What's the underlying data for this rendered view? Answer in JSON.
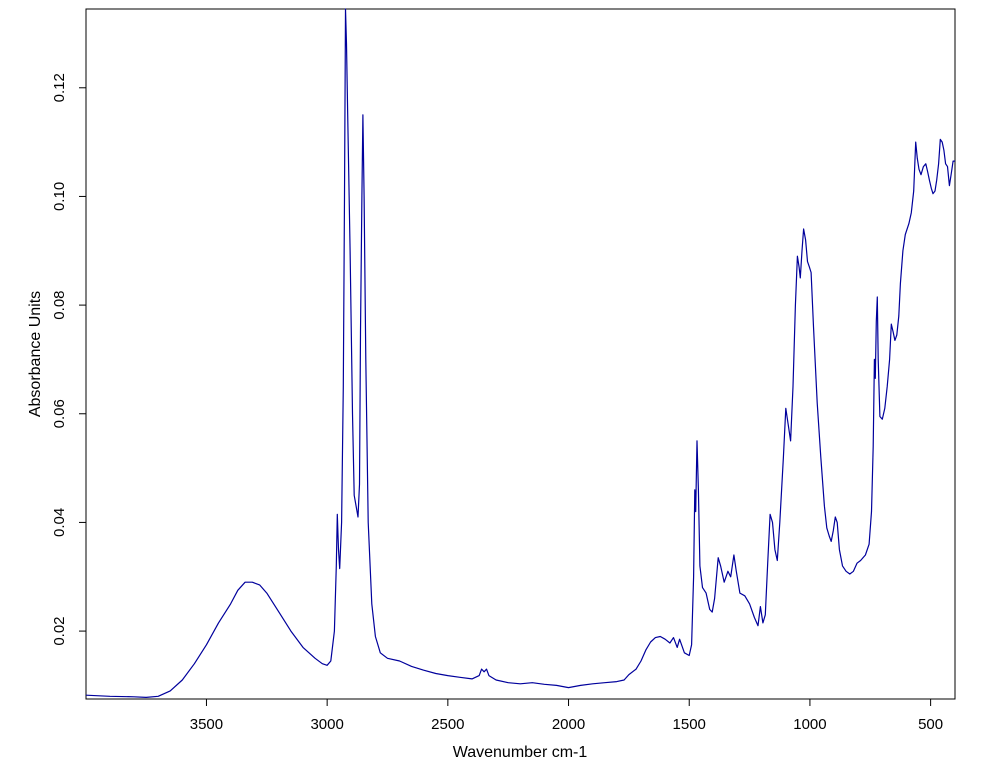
{
  "chart_data": {
    "type": "line",
    "title": "",
    "xlabel": "Wavenumber cm-1",
    "ylabel": "Absorbance Units",
    "x_reversed": true,
    "xlim": [
      3999,
      399
    ],
    "ylim": [
      0.0075,
      0.1345
    ],
    "xticks": [
      3500,
      3000,
      2500,
      2000,
      1500,
      1000,
      500
    ],
    "yticks": [
      0.02,
      0.04,
      0.06,
      0.08,
      0.1,
      0.12
    ],
    "ytick_labels": [
      "0.02",
      "0.04",
      "0.06",
      "0.08",
      "0.10",
      "0.12"
    ],
    "grid": false,
    "line_color": "#00009c",
    "series": [
      {
        "points": [
          [
            3999,
            0.0082
          ],
          [
            3900,
            0.008
          ],
          [
            3800,
            0.0079
          ],
          [
            3750,
            0.0078
          ],
          [
            3700,
            0.008
          ],
          [
            3650,
            0.009
          ],
          [
            3600,
            0.011
          ],
          [
            3550,
            0.014
          ],
          [
            3500,
            0.0175
          ],
          [
            3450,
            0.0215
          ],
          [
            3400,
            0.025
          ],
          [
            3370,
            0.0275
          ],
          [
            3340,
            0.029
          ],
          [
            3310,
            0.029
          ],
          [
            3280,
            0.0285
          ],
          [
            3250,
            0.027
          ],
          [
            3200,
            0.0235
          ],
          [
            3150,
            0.02
          ],
          [
            3100,
            0.017
          ],
          [
            3050,
            0.015
          ],
          [
            3020,
            0.014
          ],
          [
            3000,
            0.0137
          ],
          [
            2985,
            0.0145
          ],
          [
            2970,
            0.02
          ],
          [
            2962,
            0.032
          ],
          [
            2958,
            0.0415
          ],
          [
            2953,
            0.035
          ],
          [
            2948,
            0.0315
          ],
          [
            2940,
            0.04
          ],
          [
            2933,
            0.065
          ],
          [
            2928,
            0.1
          ],
          [
            2924,
            0.1345
          ],
          [
            2920,
            0.128
          ],
          [
            2915,
            0.115
          ],
          [
            2905,
            0.09
          ],
          [
            2895,
            0.06
          ],
          [
            2888,
            0.045
          ],
          [
            2880,
            0.043
          ],
          [
            2872,
            0.041
          ],
          [
            2866,
            0.047
          ],
          [
            2862,
            0.075
          ],
          [
            2856,
            0.1
          ],
          [
            2852,
            0.115
          ],
          [
            2847,
            0.1
          ],
          [
            2840,
            0.07
          ],
          [
            2830,
            0.04
          ],
          [
            2815,
            0.025
          ],
          [
            2800,
            0.019
          ],
          [
            2780,
            0.016
          ],
          [
            2750,
            0.015
          ],
          [
            2700,
            0.0145
          ],
          [
            2650,
            0.0135
          ],
          [
            2600,
            0.0128
          ],
          [
            2550,
            0.0122
          ],
          [
            2500,
            0.0118
          ],
          [
            2450,
            0.0115
          ],
          [
            2400,
            0.0112
          ],
          [
            2370,
            0.0118
          ],
          [
            2360,
            0.013
          ],
          [
            2350,
            0.0125
          ],
          [
            2340,
            0.013
          ],
          [
            2330,
            0.0118
          ],
          [
            2300,
            0.011
          ],
          [
            2250,
            0.0105
          ],
          [
            2200,
            0.0103
          ],
          [
            2150,
            0.0105
          ],
          [
            2100,
            0.0102
          ],
          [
            2050,
            0.01
          ],
          [
            2000,
            0.0096
          ],
          [
            1950,
            0.01
          ],
          [
            1900,
            0.0103
          ],
          [
            1850,
            0.0105
          ],
          [
            1800,
            0.0107
          ],
          [
            1770,
            0.011
          ],
          [
            1750,
            0.012
          ],
          [
            1720,
            0.013
          ],
          [
            1700,
            0.0145
          ],
          [
            1680,
            0.0165
          ],
          [
            1660,
            0.018
          ],
          [
            1640,
            0.0188
          ],
          [
            1620,
            0.019
          ],
          [
            1600,
            0.0185
          ],
          [
            1580,
            0.0178
          ],
          [
            1565,
            0.0188
          ],
          [
            1550,
            0.017
          ],
          [
            1540,
            0.0185
          ],
          [
            1520,
            0.016
          ],
          [
            1500,
            0.0155
          ],
          [
            1490,
            0.0175
          ],
          [
            1482,
            0.03
          ],
          [
            1477,
            0.046
          ],
          [
            1473,
            0.042
          ],
          [
            1468,
            0.055
          ],
          [
            1462,
            0.046
          ],
          [
            1456,
            0.032
          ],
          [
            1445,
            0.028
          ],
          [
            1430,
            0.027
          ],
          [
            1415,
            0.024
          ],
          [
            1405,
            0.0235
          ],
          [
            1395,
            0.026
          ],
          [
            1380,
            0.0335
          ],
          [
            1370,
            0.032
          ],
          [
            1355,
            0.029
          ],
          [
            1340,
            0.031
          ],
          [
            1328,
            0.03
          ],
          [
            1315,
            0.034
          ],
          [
            1305,
            0.031
          ],
          [
            1290,
            0.027
          ],
          [
            1270,
            0.0265
          ],
          [
            1250,
            0.025
          ],
          [
            1230,
            0.0225
          ],
          [
            1215,
            0.021
          ],
          [
            1205,
            0.0245
          ],
          [
            1195,
            0.0215
          ],
          [
            1185,
            0.023
          ],
          [
            1175,
            0.0325
          ],
          [
            1165,
            0.0415
          ],
          [
            1155,
            0.04
          ],
          [
            1145,
            0.035
          ],
          [
            1135,
            0.033
          ],
          [
            1125,
            0.04
          ],
          [
            1110,
            0.052
          ],
          [
            1100,
            0.061
          ],
          [
            1090,
            0.058
          ],
          [
            1080,
            0.055
          ],
          [
            1070,
            0.065
          ],
          [
            1060,
            0.08
          ],
          [
            1052,
            0.089
          ],
          [
            1045,
            0.087
          ],
          [
            1040,
            0.085
          ],
          [
            1033,
            0.09
          ],
          [
            1026,
            0.094
          ],
          [
            1018,
            0.092
          ],
          [
            1010,
            0.088
          ],
          [
            1002,
            0.087
          ],
          [
            995,
            0.086
          ],
          [
            985,
            0.076
          ],
          [
            970,
            0.062
          ],
          [
            955,
            0.052
          ],
          [
            940,
            0.043
          ],
          [
            930,
            0.039
          ],
          [
            920,
            0.0375
          ],
          [
            912,
            0.0365
          ],
          [
            903,
            0.0385
          ],
          [
            895,
            0.041
          ],
          [
            887,
            0.04
          ],
          [
            878,
            0.035
          ],
          [
            865,
            0.032
          ],
          [
            850,
            0.031
          ],
          [
            835,
            0.0305
          ],
          [
            820,
            0.031
          ],
          [
            805,
            0.0325
          ],
          [
            790,
            0.033
          ],
          [
            770,
            0.034
          ],
          [
            755,
            0.036
          ],
          [
            745,
            0.042
          ],
          [
            738,
            0.054
          ],
          [
            733,
            0.07
          ],
          [
            729,
            0.0665
          ],
          [
            725,
            0.077
          ],
          [
            721,
            0.0815
          ],
          [
            717,
            0.07
          ],
          [
            710,
            0.0595
          ],
          [
            700,
            0.059
          ],
          [
            690,
            0.061
          ],
          [
            680,
            0.065
          ],
          [
            670,
            0.07
          ],
          [
            663,
            0.0765
          ],
          [
            655,
            0.075
          ],
          [
            648,
            0.0735
          ],
          [
            640,
            0.0745
          ],
          [
            632,
            0.078
          ],
          [
            625,
            0.084
          ],
          [
            615,
            0.09
          ],
          [
            605,
            0.093
          ],
          [
            590,
            0.095
          ],
          [
            580,
            0.097
          ],
          [
            570,
            0.101
          ],
          [
            562,
            0.11
          ],
          [
            555,
            0.107
          ],
          [
            548,
            0.105
          ],
          [
            540,
            0.104
          ],
          [
            530,
            0.1055
          ],
          [
            520,
            0.106
          ],
          [
            512,
            0.1045
          ],
          [
            505,
            0.103
          ],
          [
            497,
            0.1015
          ],
          [
            490,
            0.1005
          ],
          [
            482,
            0.101
          ],
          [
            475,
            0.103
          ],
          [
            467,
            0.106
          ],
          [
            460,
            0.1105
          ],
          [
            452,
            0.11
          ],
          [
            445,
            0.1085
          ],
          [
            438,
            0.106
          ],
          [
            430,
            0.1055
          ],
          [
            422,
            0.102
          ],
          [
            415,
            0.104
          ],
          [
            407,
            0.1065
          ],
          [
            399,
            0.1065
          ]
        ]
      }
    ]
  }
}
